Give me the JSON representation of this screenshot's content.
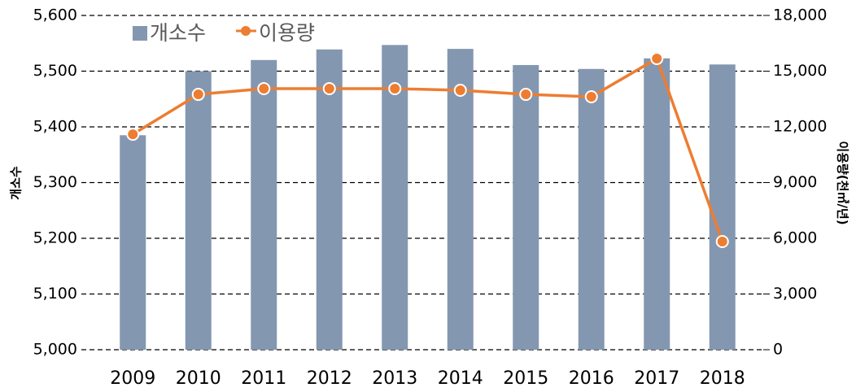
{
  "chart_data": {
    "type": "bar_line",
    "y_label": "개소수",
    "y2_label": "이용량(천㎥/년)",
    "categories": [
      "2009",
      "2010",
      "2011",
      "2012",
      "2013",
      "2014",
      "2015",
      "2016",
      "2017",
      "2018"
    ],
    "series": [
      {
        "name": "개소수",
        "type": "bar",
        "axis": "y",
        "color": "#8497b0",
        "values": [
          5385,
          5500,
          5520,
          5539,
          5547,
          5540,
          5511,
          5504,
          5523,
          5512
        ]
      },
      {
        "name": "이용량",
        "type": "line",
        "axis": "y2",
        "color": "#ed7d31",
        "values": [
          11600,
          13750,
          14060,
          14060,
          14060,
          13970,
          13750,
          13620,
          15680,
          5825
        ]
      }
    ],
    "ylim": [
      5000,
      5600
    ],
    "yticks": [
      {
        "value": 5000,
        "label": "5,000"
      },
      {
        "value": 5100,
        "label": "5,100"
      },
      {
        "value": 5200,
        "label": "5,200"
      },
      {
        "value": 5300,
        "label": "5,300"
      },
      {
        "value": 5400,
        "label": "5,400"
      },
      {
        "value": 5500,
        "label": "5,500"
      },
      {
        "value": 5600,
        "label": "5,600"
      }
    ],
    "y2lim": [
      0,
      18000
    ],
    "y2ticks": [
      0,
      {
        "value": 3000,
        "label": "3,000"
      },
      {
        "value": 6000,
        "label": "6,000"
      },
      {
        "value": 9000,
        "label": "9,000"
      },
      {
        "value": 12000,
        "label": "12,000"
      },
      {
        "value": 15000,
        "label": "15,000"
      },
      {
        "value": 18000,
        "label": "18,000"
      }
    ],
    "grid": true,
    "legend": "top-left"
  }
}
